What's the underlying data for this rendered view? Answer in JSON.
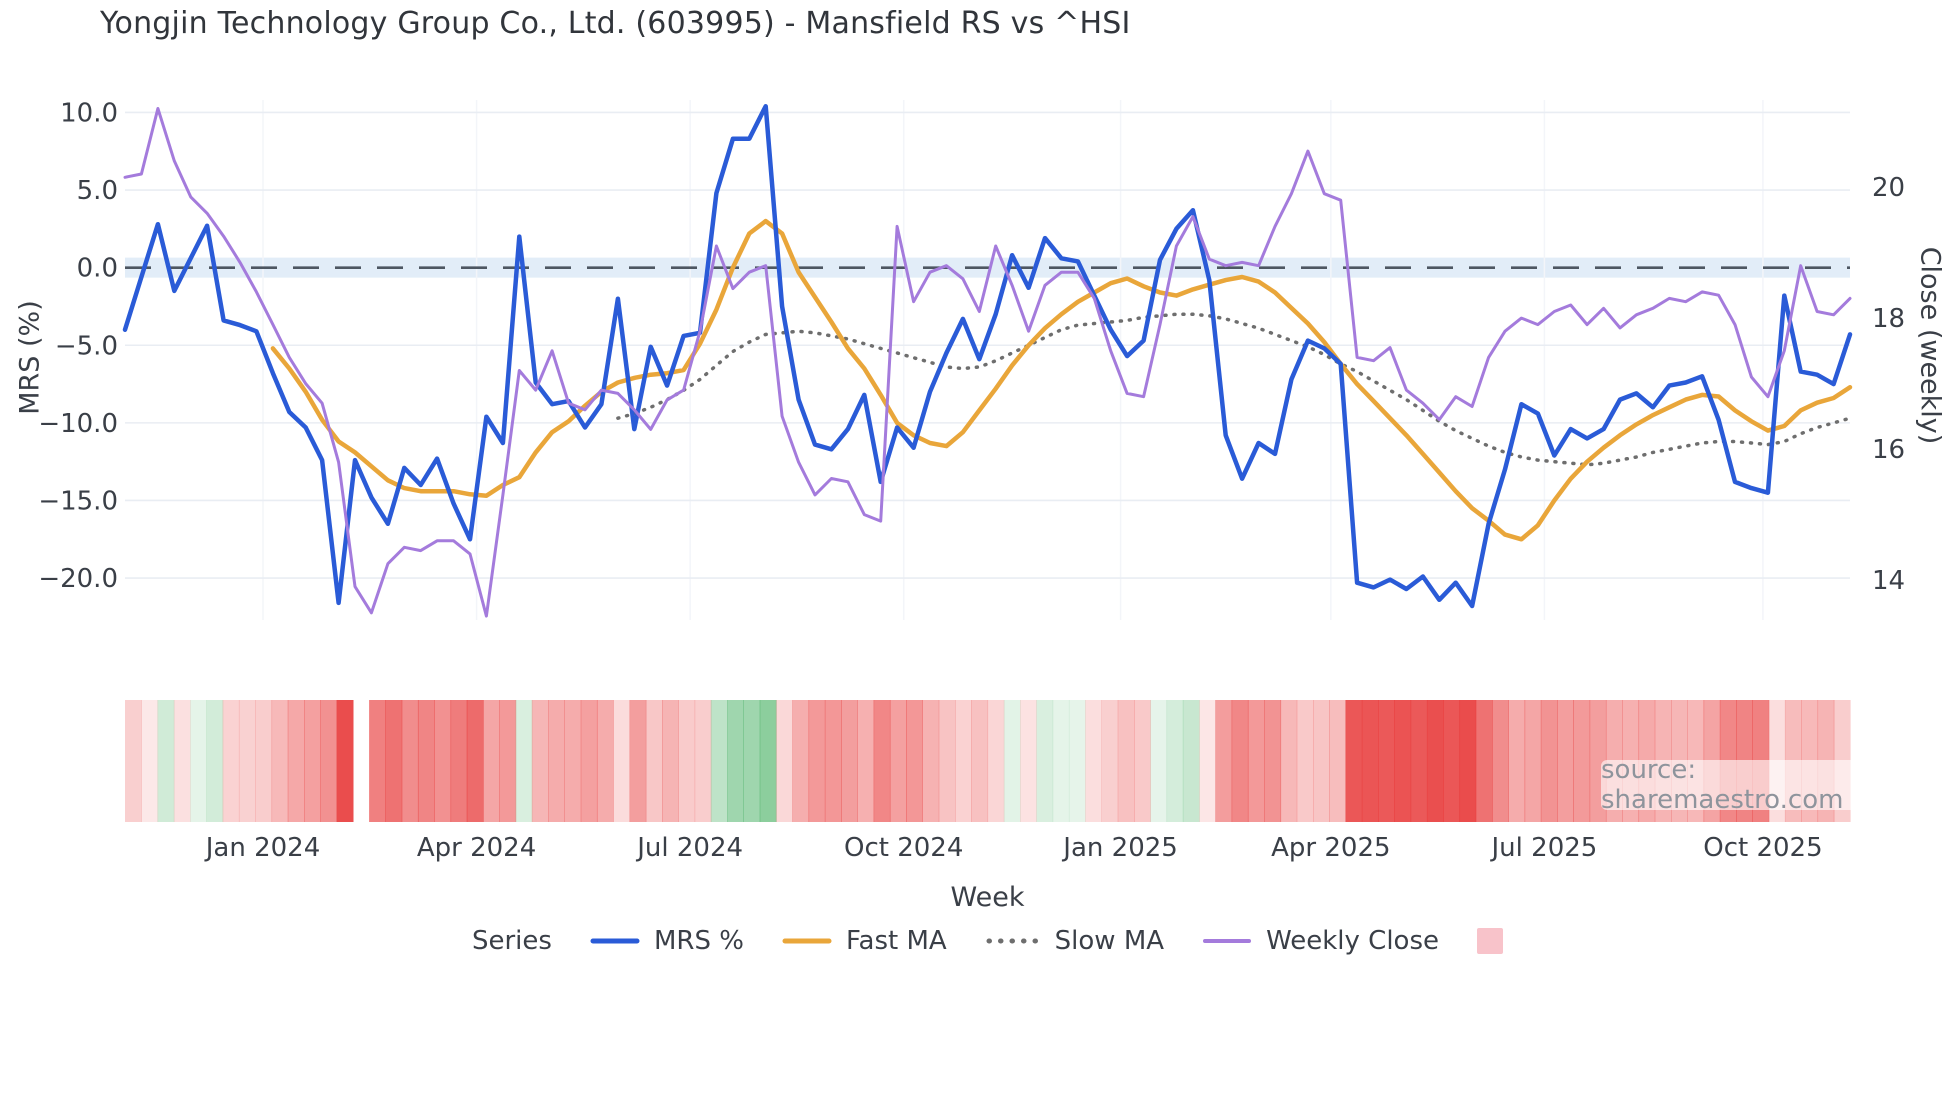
{
  "title": "Yongjin Technology Group Co., Ltd. (603995) - Mansfield RS vs ^HSI",
  "source_label": "source: sharemaestro.com",
  "axes": {
    "left_title": "MRS (%)",
    "right_title": "Close (weekly)",
    "x_title": "Week",
    "left_tick_labels": [
      "10.0",
      "5.0",
      "0.0",
      "−5.0",
      "−10.0",
      "−15.0",
      "−20.0"
    ],
    "left_tick_values": [
      10,
      5,
      0,
      -5,
      -10,
      -15,
      -20
    ],
    "right_tick_labels": [
      "20",
      "18",
      "16",
      "14"
    ],
    "right_tick_values": [
      20,
      18,
      16,
      14
    ]
  },
  "legend": {
    "series_label": "Series",
    "items": [
      {
        "label": "MRS %",
        "color": "#2a5bd7",
        "style": "solid"
      },
      {
        "label": "Fast MA",
        "color": "#e9a63a",
        "style": "solid"
      },
      {
        "label": "Slow MA",
        "color": "#6e6e6e",
        "style": "dotted"
      },
      {
        "label": "Weekly Close",
        "color": "#a47bdc",
        "style": "solid"
      }
    ],
    "heat_swatch_color": "#f8c3ca"
  },
  "colors": {
    "background": "#ffffff",
    "grid": "#e9edf3",
    "grid_vertical": "#f3f5f9",
    "zero_line": "#4d5661",
    "zero_band": "rgba(190,215,240,0.45)",
    "text": "#3a3f47",
    "muted_text": "#8e949c",
    "heat_red_rgb": "232,62,62",
    "heat_green_rgb": "52,168,83"
  },
  "chart_data": {
    "type": "line",
    "title": "Yongjin Technology Group Co., Ltd. (603995) - Mansfield RS vs ^HSI",
    "xlabel": "Week",
    "ylabel_left": "MRS (%)",
    "ylabel_right": "Close (weekly)",
    "x_unit": "week_index",
    "weeks": 106,
    "date_span": "Nov 2023 - Nov 2025, weekly",
    "x_ticks": [
      {
        "label": "Jan 2024",
        "week": 8.4
      },
      {
        "label": "Apr 2024",
        "week": 21.4
      },
      {
        "label": "Jul 2024",
        "week": 34.4
      },
      {
        "label": "Oct 2024",
        "week": 47.4
      },
      {
        "label": "Jan 2025",
        "week": 60.6
      },
      {
        "label": "Apr 2025",
        "week": 73.4
      },
      {
        "label": "Jul 2025",
        "week": 86.4
      },
      {
        "label": "Oct 2025",
        "week": 99.7
      }
    ],
    "ylim_left": [
      -22.7,
      10.8
    ],
    "ylim_right": [
      13.39,
      21.33
    ],
    "grid": "horizontal",
    "legend_position": "bottom",
    "series": [
      {
        "name": "Slow MA",
        "axis": "left",
        "color": "#6e6e6e",
        "width": 3.5,
        "dash": "1 8",
        "values": [
          null,
          null,
          null,
          null,
          null,
          null,
          null,
          null,
          null,
          null,
          null,
          null,
          null,
          null,
          null,
          null,
          null,
          null,
          null,
          null,
          null,
          null,
          null,
          null,
          null,
          null,
          null,
          null,
          null,
          null,
          -9.7,
          -9.4,
          -9.0,
          -8.5,
          -7.9,
          -7.2,
          -6.3,
          -5.4,
          -4.8,
          -4.3,
          -4.2,
          -4.1,
          -4.2,
          -4.4,
          -4.6,
          -4.9,
          -5.2,
          -5.5,
          -5.8,
          -6.1,
          -6.4,
          -6.5,
          -6.4,
          -6.0,
          -5.5,
          -5.0,
          -4.5,
          -4.0,
          -3.7,
          -3.6,
          -3.5,
          -3.4,
          -3.2,
          -3.1,
          -3.0,
          -3.0,
          -3.1,
          -3.3,
          -3.6,
          -3.9,
          -4.3,
          -4.7,
          -5.1,
          -5.6,
          -6.2,
          -6.7,
          -7.3,
          -7.9,
          -8.5,
          -9.2,
          -9.9,
          -10.5,
          -11.0,
          -11.5,
          -11.9,
          -12.2,
          -12.4,
          -12.5,
          -12.6,
          -12.7,
          -12.6,
          -12.4,
          -12.2,
          -11.9,
          -11.7,
          -11.5,
          -11.3,
          -11.2,
          -11.2,
          -11.3,
          -11.4,
          -11.2,
          -10.7,
          -10.3,
          -10.0,
          -9.7
        ]
      },
      {
        "name": "Fast MA",
        "axis": "left",
        "color": "#e9a63a",
        "width": 4.5,
        "dash": null,
        "values": [
          null,
          null,
          null,
          null,
          null,
          null,
          null,
          null,
          null,
          -5.2,
          -6.5,
          -8.0,
          -9.8,
          -11.2,
          -11.9,
          -12.8,
          -13.7,
          -14.2,
          -14.4,
          -14.4,
          -14.4,
          -14.6,
          -14.7,
          -14.0,
          -13.5,
          -11.9,
          -10.6,
          -9.9,
          -8.9,
          -8.0,
          -7.4,
          -7.1,
          -6.9,
          -6.8,
          -6.6,
          -4.9,
          -2.7,
          0.0,
          2.2,
          3.0,
          2.2,
          -0.3,
          -1.9,
          -3.5,
          -5.2,
          -6.5,
          -8.2,
          -10.0,
          -10.8,
          -11.3,
          -11.5,
          -10.6,
          -9.2,
          -7.8,
          -6.3,
          -5.0,
          -3.9,
          -3.0,
          -2.2,
          -1.6,
          -1.0,
          -0.7,
          -1.2,
          -1.6,
          -1.8,
          -1.4,
          -1.1,
          -0.8,
          -0.6,
          -0.9,
          -1.6,
          -2.6,
          -3.6,
          -4.8,
          -6.2,
          -7.5,
          -8.6,
          -9.7,
          -10.8,
          -12.0,
          -13.2,
          -14.4,
          -15.5,
          -16.3,
          -17.2,
          -17.5,
          -16.6,
          -15.0,
          -13.6,
          -12.5,
          -11.6,
          -10.8,
          -10.1,
          -9.5,
          -9.0,
          -8.5,
          -8.2,
          -8.3,
          -9.2,
          -9.9,
          -10.5,
          -10.2,
          -9.2,
          -8.7,
          -8.4,
          -7.7
        ]
      },
      {
        "name": "MRS %",
        "axis": "left",
        "color": "#2a5bd7",
        "width": 4.5,
        "dash": null,
        "values": [
          -4.0,
          -0.6,
          2.8,
          -1.5,
          0.6,
          2.7,
          -3.4,
          -3.7,
          -4.1,
          -6.8,
          -9.3,
          -10.3,
          -12.4,
          -21.6,
          -12.4,
          -14.8,
          -16.5,
          -12.9,
          -14.0,
          -12.3,
          -15.2,
          -17.5,
          -9.6,
          -11.3,
          2.0,
          -7.4,
          -8.8,
          -8.6,
          -10.3,
          -8.8,
          -2.0,
          -10.4,
          -5.1,
          -7.6,
          -4.4,
          -4.2,
          4.8,
          8.3,
          8.3,
          10.4,
          -2.5,
          -8.5,
          -11.4,
          -11.7,
          -10.4,
          -8.2,
          -13.8,
          -10.3,
          -11.6,
          -8.0,
          -5.5,
          -3.3,
          -5.9,
          -3.0,
          0.8,
          -1.3,
          1.9,
          0.6,
          0.4,
          -1.8,
          -4.0,
          -5.7,
          -4.7,
          0.5,
          2.5,
          3.7,
          -0.8,
          -10.8,
          -13.6,
          -11.3,
          -12.0,
          -7.2,
          -4.7,
          -5.2,
          -6.2,
          -20.3,
          -20.6,
          -20.1,
          -20.7,
          -19.9,
          -21.4,
          -20.3,
          -21.8,
          -16.5,
          -13.0,
          -8.8,
          -9.4,
          -12.1,
          -10.4,
          -11.0,
          -10.4,
          -8.5,
          -8.1,
          -9.0,
          -7.6,
          -7.4,
          -7.0,
          -9.8,
          -13.8,
          -14.2,
          -14.5,
          -1.8,
          -6.7,
          -6.9,
          -7.5,
          -4.3
        ]
      },
      {
        "name": "Weekly Close",
        "axis": "right",
        "color": "#a47bdc",
        "width": 3,
        "dash": null,
        "values": [
          20.15,
          20.2,
          21.2,
          20.4,
          19.85,
          19.6,
          19.25,
          18.85,
          18.4,
          17.9,
          17.4,
          17.0,
          16.7,
          15.8,
          13.9,
          13.5,
          14.25,
          14.5,
          14.45,
          14.6,
          14.6,
          14.4,
          13.45,
          15.3,
          17.2,
          16.9,
          17.5,
          16.7,
          16.6,
          16.9,
          16.85,
          16.6,
          16.3,
          16.75,
          16.9,
          17.8,
          19.1,
          18.45,
          18.7,
          18.8,
          16.5,
          15.8,
          15.3,
          15.55,
          15.5,
          15.0,
          14.9,
          19.4,
          18.25,
          18.7,
          18.8,
          18.6,
          18.1,
          19.1,
          18.5,
          17.8,
          18.5,
          18.7,
          18.7,
          18.3,
          17.5,
          16.85,
          16.8,
          17.9,
          19.1,
          19.55,
          18.9,
          18.8,
          18.85,
          18.8,
          19.4,
          19.9,
          20.55,
          19.9,
          19.8,
          17.4,
          17.35,
          17.55,
          16.9,
          16.7,
          16.45,
          16.8,
          16.65,
          17.4,
          17.8,
          18.0,
          17.9,
          18.1,
          18.2,
          17.9,
          18.15,
          17.85,
          18.05,
          18.15,
          18.3,
          18.25,
          18.4,
          18.35,
          17.9,
          17.1,
          16.8,
          17.5,
          18.8,
          18.1,
          18.05,
          18.3
        ]
      }
    ],
    "heat_strip": {
      "description": "weekly color band below plot: green for positive MRS %, red intensity grows with negative magnitude",
      "source_series": "MRS %",
      "missing_weeks": [
        14
      ]
    }
  }
}
